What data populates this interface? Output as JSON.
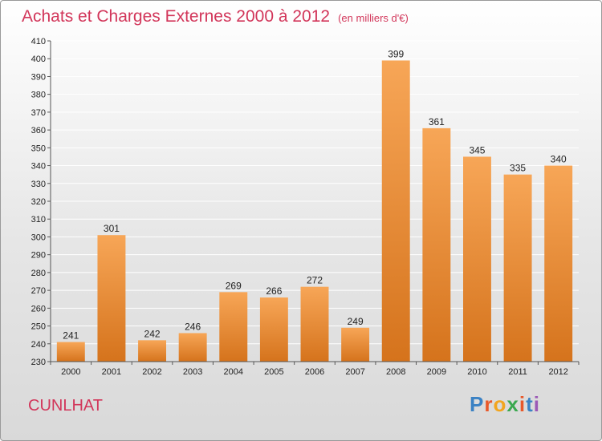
{
  "header": {
    "title": "Achats et Charges Externes 2000 à 2012",
    "subtitle": "(en milliers d'€)"
  },
  "footer": {
    "place": "CUNLHAT",
    "logo_letters": [
      "P",
      "r",
      "o",
      "x",
      "i",
      "t",
      "i"
    ],
    "logo_colors": [
      "#3b82c4",
      "#e8582a",
      "#f2a51e",
      "#3aa84f",
      "#e8582a",
      "#3b82c4",
      "#9b59b6"
    ]
  },
  "colors": {
    "bar_top": "#f7a657",
    "bar_bottom": "#d5731c",
    "grid": "#ffffff",
    "title": "#d2365a"
  },
  "chart_data": {
    "type": "bar",
    "title": "Achats et Charges Externes 2000 à 2012",
    "subtitle": "(en milliers d'€)",
    "categories": [
      "2000",
      "2001",
      "2002",
      "2003",
      "2004",
      "2005",
      "2006",
      "2007",
      "2008",
      "2009",
      "2010",
      "2011",
      "2012"
    ],
    "values": [
      241,
      301,
      242,
      246,
      269,
      266,
      272,
      249,
      399,
      361,
      345,
      335,
      340
    ],
    "xlabel": "",
    "ylabel": "",
    "ylim": [
      230,
      410
    ],
    "ytick_step": 10,
    "grid": true,
    "legend": "none"
  }
}
